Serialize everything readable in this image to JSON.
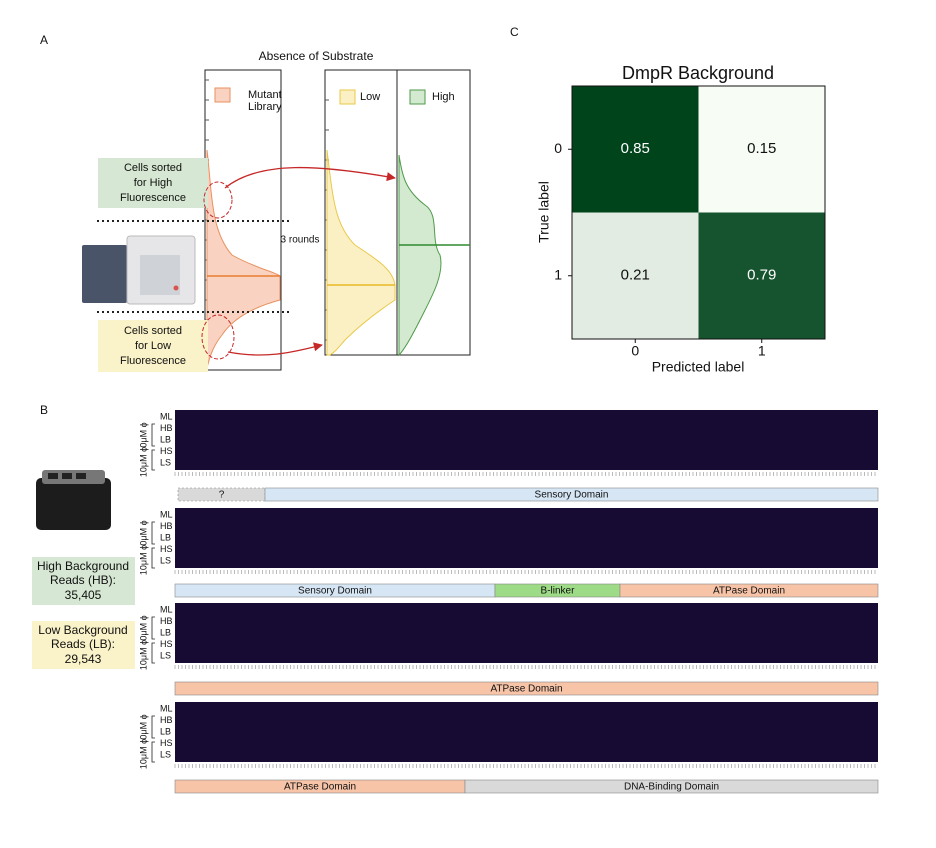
{
  "panel_a": {
    "label": "A",
    "title": "Absence of Substrate",
    "legend": {
      "mutant": [
        "Mutant",
        "Library"
      ],
      "low": "Low",
      "high": "High"
    },
    "sorted_high": [
      "Cells sorted",
      "for High",
      "Fluorescence"
    ],
    "sorted_low": [
      "Cells sorted",
      "for Low",
      "Fluorescence"
    ],
    "rounds": "3 rounds"
  },
  "panel_b": {
    "label": "B",
    "rows": [
      "ML",
      "HB",
      "LB",
      "HS",
      "LS"
    ],
    "conditions": [
      "0μM ϕ",
      "10μM ϕ"
    ],
    "strips": [
      {
        "domains": [
          "?",
          "Sensory Domain"
        ]
      },
      {
        "domains": [
          "Sensory Domain",
          "B-linker",
          "ATPase Domain"
        ]
      },
      {
        "domains": [
          "ATPase Domain"
        ]
      },
      {
        "domains": [
          "ATPase Domain",
          "DNA-Binding Domain"
        ]
      }
    ],
    "high_background": {
      "lines": [
        "High Background",
        "Reads (HB):"
      ],
      "count": "35,405"
    },
    "low_background": {
      "lines": [
        "Low Background",
        "Reads (LB):"
      ],
      "count": "29,543"
    }
  },
  "panel_c": {
    "label": "C",
    "chart_data": {
      "type": "heatmap",
      "title": "DmpR Background",
      "x_label": "Predicted label",
      "y_label": "True label",
      "x_categories": [
        "0",
        "1"
      ],
      "y_categories": [
        "0",
        "1"
      ],
      "values": [
        [
          0.85,
          0.15
        ],
        [
          0.21,
          0.79
        ]
      ],
      "colormap": [
        "#f7fcf5",
        "#00441b"
      ]
    }
  }
}
